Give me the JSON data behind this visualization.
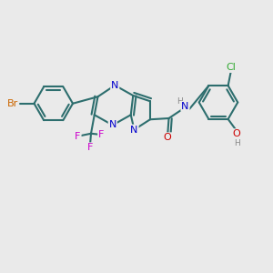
{
  "bg_color": "#eaeaea",
  "bond_color": "#2d6e6e",
  "bond_width": 1.5,
  "atom_colors": {
    "Br": "#cc6600",
    "N": "#0000cc",
    "F": "#cc00cc",
    "O": "#cc0000",
    "Cl": "#33aa33",
    "H": "#888888",
    "C": "#2d6e6e"
  },
  "font_size": 8.0,
  "small_font_size": 6.5,
  "xlim": [
    0,
    12
  ],
  "ylim": [
    0,
    12
  ]
}
